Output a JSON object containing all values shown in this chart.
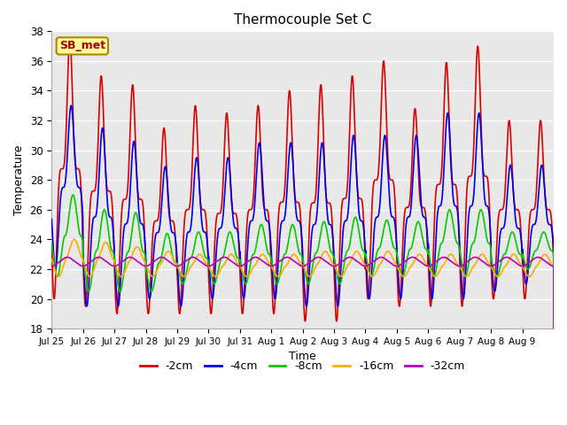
{
  "title": "Thermocouple Set C",
  "xlabel": "Time",
  "ylabel": "Temperature",
  "ylim": [
    18,
    38
  ],
  "yticks": [
    18,
    20,
    22,
    24,
    26,
    28,
    30,
    32,
    34,
    36,
    38
  ],
  "xtick_labels": [
    "Jul 25",
    "Jul 26",
    "Jul 27",
    "Jul 28",
    "Jul 29",
    "Jul 30",
    "Jul 31",
    "Aug 1",
    "Aug 2",
    "Aug 3",
    "Aug 4",
    "Aug 5",
    "Aug 6",
    "Aug 7",
    "Aug 8",
    "Aug 9"
  ],
  "series": [
    {
      "label": "-2cm",
      "color": "#dd0000",
      "lw": 1.2
    },
    {
      "label": "-4cm",
      "color": "#0000ee",
      "lw": 1.2
    },
    {
      "label": "-8cm",
      "color": "#00cc00",
      "lw": 1.2
    },
    {
      "label": "-16cm",
      "color": "#ffaa00",
      "lw": 1.2
    },
    {
      "label": "-32cm",
      "color": "#bb00bb",
      "lw": 1.2
    }
  ],
  "annotation_text": "SB_met",
  "annotation_color": "#aa0000",
  "annotation_bg": "#ffff99",
  "annotation_border": "#aa8800",
  "bg_color": "#e8e8e8",
  "n_days": 16
}
